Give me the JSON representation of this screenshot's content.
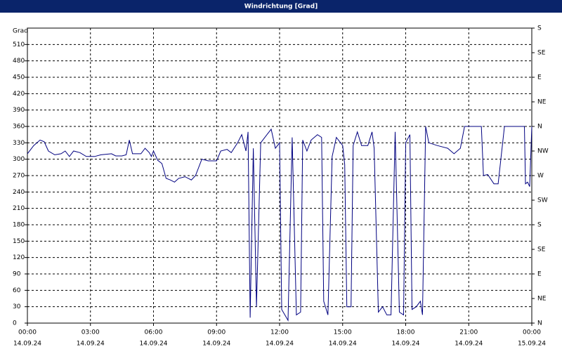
{
  "chart_data": {
    "type": "line",
    "title": "Windrichtung [Grad]",
    "y_label": "Grad",
    "color": "#000080",
    "grid": true,
    "x": [
      0,
      0.3,
      0.6,
      0.8,
      1.0,
      1.3,
      1.6,
      1.8,
      2.0,
      2.2,
      2.5,
      2.8,
      3.2,
      3.5,
      4.0,
      4.2,
      4.5,
      4.7,
      4.85,
      5.0,
      5.4,
      5.6,
      5.8,
      5.9,
      6.0,
      6.2,
      6.4,
      6.6,
      6.8,
      7.0,
      7.2,
      7.5,
      7.8,
      8.0,
      8.3,
      8.6,
      9.0,
      9.2,
      9.5,
      9.7,
      10.0,
      10.2,
      10.4,
      10.5,
      10.6,
      10.75,
      10.9,
      11.1,
      11.6,
      11.8,
      12.0,
      12.1,
      12.4,
      12.6,
      12.8,
      13.0,
      13.1,
      13.3,
      13.5,
      13.8,
      14.0,
      14.1,
      14.3,
      14.5,
      14.7,
      15.0,
      15.1,
      15.2,
      15.4,
      15.5,
      15.7,
      15.9,
      16.2,
      16.4,
      16.5,
      16.7,
      16.9,
      17.1,
      17.3,
      17.5,
      17.7,
      17.9,
      18.0,
      18.2,
      18.3,
      18.5,
      18.7,
      18.8,
      18.95,
      19.1,
      19.5,
      20.0,
      20.3,
      20.6,
      20.8,
      21.6,
      21.7,
      21.9,
      22.2,
      22.4,
      22.7,
      23.3,
      23.65,
      23.7,
      23.8,
      23.9,
      24.0
    ],
    "values": [
      310,
      325,
      335,
      332,
      315,
      308,
      310,
      315,
      305,
      315,
      312,
      305,
      305,
      308,
      310,
      306,
      306,
      308,
      335,
      310,
      310,
      320,
      312,
      305,
      315,
      298,
      292,
      265,
      262,
      258,
      265,
      268,
      262,
      270,
      300,
      297,
      297,
      315,
      318,
      312,
      330,
      345,
      315,
      350,
      10,
      320,
      30,
      330,
      355,
      320,
      330,
      25,
      5,
      340,
      15,
      20,
      335,
      315,
      335,
      345,
      340,
      40,
      15,
      305,
      340,
      325,
      290,
      30,
      30,
      325,
      350,
      325,
      325,
      350,
      320,
      20,
      30,
      15,
      15,
      350,
      20,
      15,
      330,
      345,
      25,
      30,
      40,
      15,
      360,
      330,
      325,
      320,
      310,
      320,
      360,
      360,
      270,
      272,
      255,
      255,
      360,
      360,
      360,
      255,
      258,
      250,
      360
    ],
    "xlim": [
      0,
      24
    ],
    "xticks": [
      {
        "value": 0,
        "label": "00:00"
      },
      {
        "value": 3,
        "label": "03:00"
      },
      {
        "value": 6,
        "label": "06:00"
      },
      {
        "value": 9,
        "label": "09:00"
      },
      {
        "value": 12,
        "label": "12:00"
      },
      {
        "value": 15,
        "label": "15:00"
      },
      {
        "value": 18,
        "label": "18:00"
      },
      {
        "value": 21,
        "label": "21:00"
      },
      {
        "value": 24,
        "label": "00:00"
      }
    ],
    "xtick_dates": [
      "14.09.24",
      "14.09.24",
      "14.09.24",
      "14.09.24",
      "14.09.24",
      "14.09.24",
      "14.09.24",
      "14.09.24",
      "15.09.24"
    ],
    "ylim": [
      0,
      540
    ],
    "yticks": [
      0,
      30,
      60,
      90,
      120,
      150,
      180,
      210,
      240,
      270,
      300,
      330,
      360,
      390,
      420,
      450,
      480,
      510
    ],
    "y2lim": [
      0,
      540
    ],
    "y2ticks": [
      {
        "value": 0,
        "label": "N"
      },
      {
        "value": 45,
        "label": "NE"
      },
      {
        "value": 90,
        "label": "E"
      },
      {
        "value": 135,
        "label": "SE"
      },
      {
        "value": 180,
        "label": "S"
      },
      {
        "value": 225,
        "label": "SW"
      },
      {
        "value": 270,
        "label": "W"
      },
      {
        "value": 315,
        "label": "NW"
      },
      {
        "value": 360,
        "label": "N"
      },
      {
        "value": 405,
        "label": "NE"
      },
      {
        "value": 450,
        "label": "E"
      },
      {
        "value": 495,
        "label": "SE"
      },
      {
        "value": 540,
        "label": "S"
      }
    ]
  }
}
